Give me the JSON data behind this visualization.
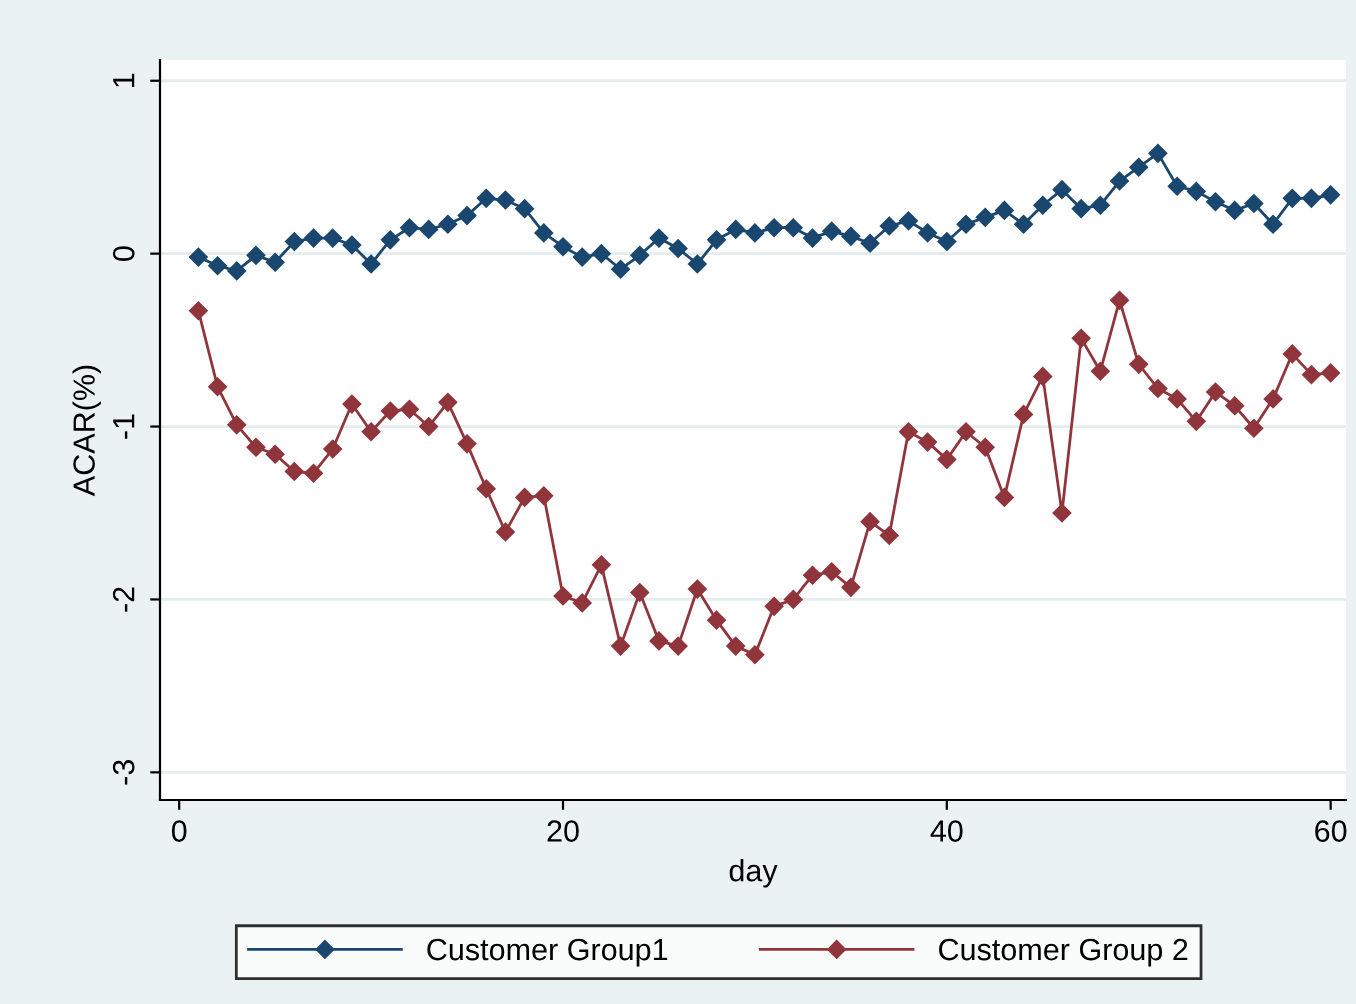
{
  "chart_data": {
    "type": "line",
    "xlabel": "day",
    "ylabel": "ACAR(%)",
    "x": [
      1,
      2,
      3,
      4,
      5,
      6,
      7,
      8,
      9,
      10,
      11,
      12,
      13,
      14,
      15,
      16,
      17,
      18,
      19,
      20,
      21,
      22,
      23,
      24,
      25,
      26,
      27,
      28,
      29,
      30,
      31,
      32,
      33,
      34,
      35,
      36,
      37,
      38,
      39,
      40,
      41,
      42,
      43,
      44,
      45,
      46,
      47,
      48,
      49,
      50,
      51,
      52,
      53,
      54,
      55,
      56,
      57,
      58,
      59,
      60
    ],
    "series": [
      {
        "name": "Customer Group1",
        "color": "#1a476f",
        "values": [
          -0.02,
          -0.07,
          -0.1,
          -0.01,
          -0.05,
          0.07,
          0.09,
          0.09,
          0.05,
          -0.06,
          0.08,
          0.15,
          0.14,
          0.17,
          0.22,
          0.32,
          0.31,
          0.26,
          0.12,
          0.04,
          -0.02,
          0.0,
          -0.09,
          -0.01,
          0.09,
          0.03,
          -0.06,
          0.08,
          0.14,
          0.12,
          0.15,
          0.15,
          0.09,
          0.13,
          0.1,
          0.06,
          0.16,
          0.19,
          0.12,
          0.07,
          0.17,
          0.21,
          0.25,
          0.17,
          0.28,
          0.37,
          0.26,
          0.28,
          0.42,
          0.5,
          0.58,
          0.39,
          0.36,
          0.3,
          0.25,
          0.29,
          0.17,
          0.32,
          0.32,
          0.34
        ]
      },
      {
        "name": "Customer Group 2",
        "color": "#90353b",
        "values": [
          -0.33,
          -0.77,
          -0.99,
          -1.12,
          -1.16,
          -1.26,
          -1.27,
          -1.13,
          -0.87,
          -1.03,
          -0.91,
          -0.9,
          -1.0,
          -0.86,
          -1.1,
          -1.36,
          -1.61,
          -1.41,
          -1.4,
          -1.98,
          -2.02,
          -1.8,
          -2.27,
          -1.96,
          -2.24,
          -2.27,
          -1.94,
          -2.12,
          -2.27,
          -2.32,
          -2.04,
          -2.0,
          -1.86,
          -1.84,
          -1.93,
          -1.55,
          -1.63,
          -1.03,
          -1.09,
          -1.19,
          -1.03,
          -1.12,
          -1.41,
          -0.93,
          -0.71,
          -1.5,
          -0.49,
          -0.68,
          -0.27,
          -0.64,
          -0.78,
          -0.84,
          -0.97,
          -0.8,
          -0.88,
          -1.01,
          -0.84,
          -0.58,
          -0.7,
          -0.69
        ]
      }
    ],
    "xlim": [
      -1,
      60.8
    ],
    "xticks": [
      0,
      20,
      40,
      60
    ],
    "ylim": [
      -3.16,
      1.12
    ],
    "yticks": [
      1,
      0,
      -1,
      -2,
      -3
    ],
    "grid": "y",
    "legend": "bottom",
    "marker": "diamond",
    "line_style": "solid"
  }
}
